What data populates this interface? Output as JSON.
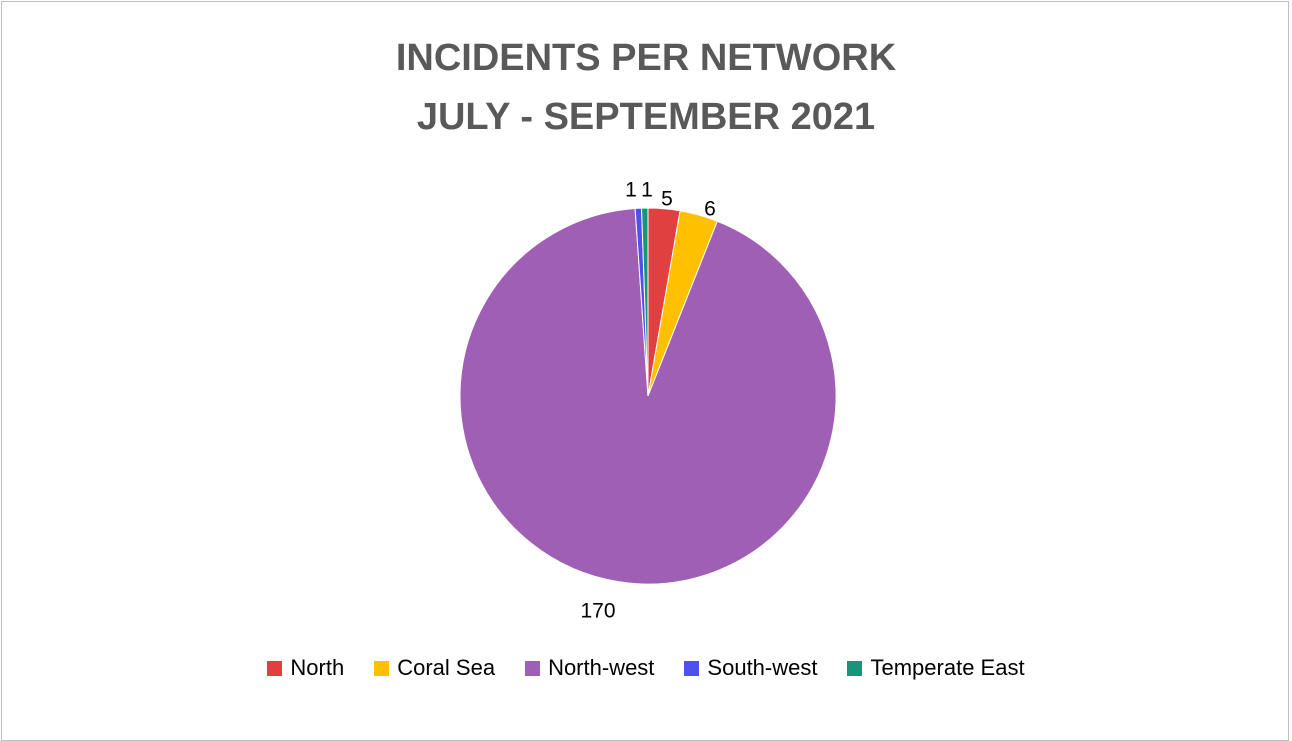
{
  "chart_data": {
    "type": "pie",
    "title": [
      "INCIDENTS PER NETWORK",
      "JULY - SEPTEMBER 2021"
    ],
    "categories": [
      "North",
      "Coral Sea",
      "North-west",
      "South-west",
      "Temperate East"
    ],
    "values": [
      5,
      6,
      170,
      1,
      1
    ],
    "colors": [
      "#e04040",
      "#ffc000",
      "#9e5fb5",
      "#5050f0",
      "#14967a"
    ],
    "data_labels": [
      "5",
      "6",
      "170",
      "1",
      "1"
    ],
    "legend_position": "bottom",
    "start_angle_deg": 0,
    "direction": "clockwise"
  }
}
